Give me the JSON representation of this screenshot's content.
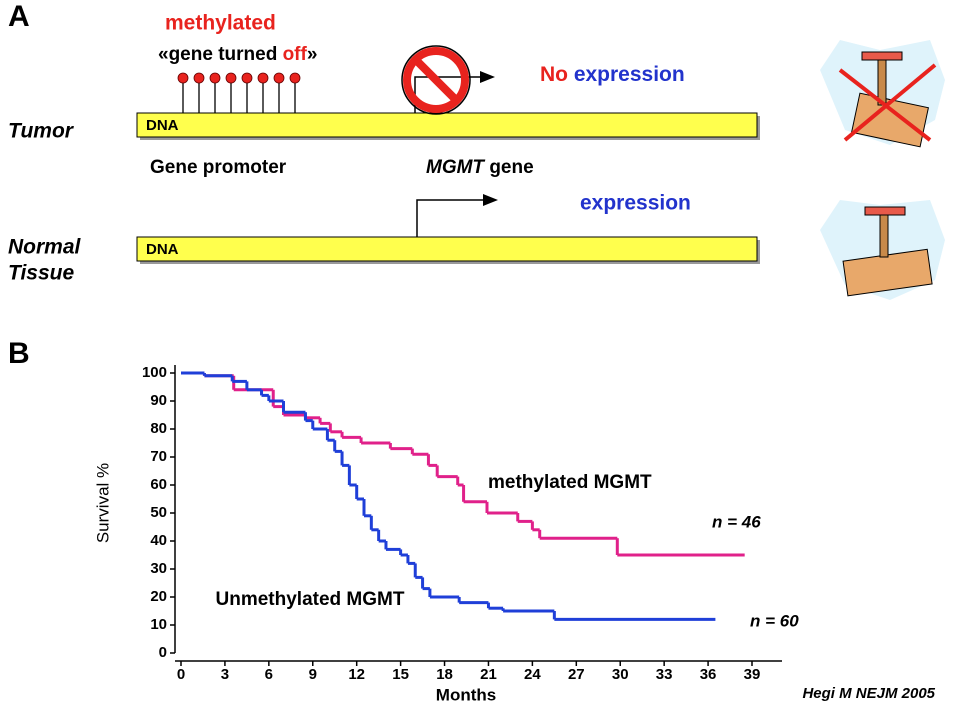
{
  "panel_a": {
    "label": "A",
    "methylated": "methylated",
    "gene_turned_off": [
      "«gene turned ",
      "off",
      "»"
    ],
    "tumor": "Tumor",
    "dna_tumor": "DNA",
    "no_expression": [
      "No ",
      "expression"
    ],
    "gene_promoter": "Gene promoter",
    "mgmt_gene": [
      "MGMT",
      " gene"
    ],
    "expression": "expression",
    "normal_tissue": [
      "Normal",
      "Tissue"
    ],
    "dna_normal": "DNA"
  },
  "chart_data": {
    "type": "step",
    "panel_label": "B",
    "xlabel": "Months",
    "ylabel": "Survival %",
    "source": "Hegi M NEJM 2005",
    "xlim": [
      0,
      39
    ],
    "xticks": [
      0,
      3,
      6,
      9,
      12,
      15,
      18,
      21,
      24,
      27,
      30,
      33,
      36,
      39
    ],
    "ylim": [
      0,
      100
    ],
    "yticks": [
      0,
      10,
      20,
      30,
      40,
      50,
      60,
      70,
      80,
      90,
      100
    ],
    "series": [
      {
        "name": "methylated MGMT",
        "color": "#e0218a",
        "n_label": "n = 46",
        "x": [
          0,
          1.6,
          3.6,
          6.3,
          7,
          8.5,
          9.5,
          10.2,
          11,
          12.3,
          14.3,
          15.8,
          16.9,
          17.5,
          18.9,
          19.3,
          20.9,
          23,
          24,
          24.5,
          29.8,
          38.5
        ],
        "values": [
          100,
          99,
          94,
          88,
          85,
          84,
          82,
          79,
          77,
          75,
          73,
          71,
          67,
          63,
          60,
          54,
          50,
          47,
          44,
          41,
          35,
          35
        ]
      },
      {
        "name": "Unmethylated MGMT",
        "color": "#1f3fd8",
        "n_label": "n = 60",
        "x": [
          0,
          1.6,
          3.5,
          4.5,
          5.5,
          6,
          7,
          8.5,
          9,
          10,
          10.5,
          11,
          11.5,
          12,
          12.5,
          13,
          13.5,
          14,
          15,
          15.5,
          16,
          16.5,
          17,
          19,
          21,
          22,
          25.5,
          36.5
        ],
        "values": [
          100,
          99,
          97,
          94,
          92,
          90,
          86,
          83,
          80,
          76,
          72,
          67,
          60,
          55,
          49,
          44,
          40,
          37,
          35,
          32,
          27,
          23,
          20,
          18,
          16,
          15,
          12,
          12
        ]
      }
    ]
  }
}
